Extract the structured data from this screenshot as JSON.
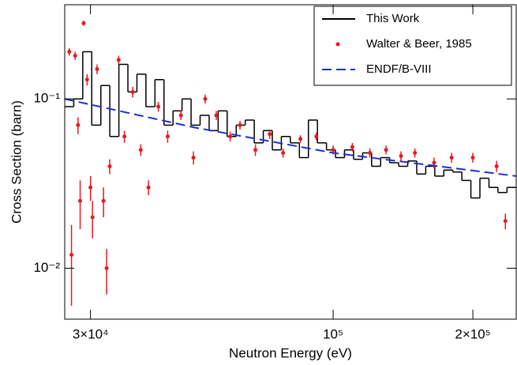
{
  "chart_data": {
    "type": "step",
    "xlabel": "Neutron Energy (eV)",
    "ylabel": "Cross Section (barn)",
    "xscale": "log",
    "yscale": "log",
    "xlim": [
      26400,
      248000
    ],
    "ylim": [
      0.005,
      0.36
    ],
    "xticks": [
      {
        "value": 30000,
        "label": "3×10⁴"
      },
      {
        "value": 100000,
        "label": "10⁵"
      },
      {
        "value": 200000,
        "label": "2×10⁵"
      }
    ],
    "yticks": [
      {
        "value": 0.01,
        "label": "10⁻²"
      },
      {
        "value": 0.1,
        "label": "10⁻¹"
      }
    ],
    "legend": "upper right",
    "series": [
      {
        "name": "This Work",
        "type": "step",
        "color": "#000000",
        "bins": [
          26400,
          27610,
          28870,
          30190,
          31580,
          33020,
          34540,
          36120,
          37770,
          39500,
          41310,
          43200,
          45180,
          47250,
          49420,
          51680,
          54050,
          56520,
          59110,
          61820,
          64650,
          67610,
          70710,
          73950,
          77330,
          80870,
          84580,
          88450,
          92500,
          96740,
          101170,
          105800,
          110650,
          115720,
          121020,
          126560,
          132360,
          138420,
          144760,
          151390,
          158320,
          165570,
          173160,
          181090,
          189380,
          198060,
          207130,
          216620,
          226540,
          236920,
          248000
        ],
        "values": [
          0.09,
          0.1,
          0.19,
          0.07,
          0.12,
          0.06,
          0.16,
          0.11,
          0.14,
          0.09,
          0.13,
          0.07,
          0.085,
          0.1,
          0.07,
          0.08,
          0.065,
          0.085,
          0.06,
          0.07,
          0.075,
          0.055,
          0.065,
          0.05,
          0.06,
          0.055,
          0.045,
          0.075,
          0.055,
          0.05,
          0.045,
          0.05,
          0.044,
          0.048,
          0.04,
          0.045,
          0.042,
          0.04,
          0.043,
          0.036,
          0.04,
          0.035,
          0.038,
          0.037,
          0.033,
          0.026,
          0.034,
          0.03,
          0.028,
          0.03
        ]
      },
      {
        "name": "Walter & Beer, 1985",
        "type": "errorbar",
        "color": "#e8191e",
        "x": [
          27000,
          27300,
          27800,
          28200,
          28500,
          29000,
          29500,
          30000,
          30300,
          31000,
          32000,
          32500,
          33000,
          34500,
          35500,
          37000,
          38500,
          40000,
          42000,
          44000,
          47000,
          50000,
          53000,
          56000,
          60000,
          63000,
          68000,
          73000,
          78000,
          85000,
          92000,
          100000,
          110000,
          120000,
          130000,
          140000,
          150000,
          165000,
          180000,
          200000,
          225000,
          235000
        ],
        "values": [
          0.19,
          0.012,
          0.18,
          0.07,
          0.025,
          0.28,
          0.13,
          0.03,
          0.02,
          0.15,
          0.025,
          0.01,
          0.04,
          0.17,
          0.06,
          0.11,
          0.05,
          0.03,
          0.09,
          0.06,
          0.08,
          0.045,
          0.1,
          0.08,
          0.06,
          0.07,
          0.05,
          0.062,
          0.048,
          0.058,
          0.06,
          0.05,
          0.052,
          0.048,
          0.05,
          0.046,
          0.048,
          0.042,
          0.045,
          0.045,
          0.04,
          0.019
        ],
        "errors": [
          0.01,
          0.006,
          0.01,
          0.008,
          0.008,
          0.01,
          0.01,
          0.005,
          0.005,
          0.01,
          0.005,
          0.003,
          0.004,
          0.01,
          0.005,
          0.008,
          0.004,
          0.003,
          0.006,
          0.005,
          0.005,
          0.004,
          0.006,
          0.005,
          0.004,
          0.004,
          0.004,
          0.004,
          0.003,
          0.003,
          0.003,
          0.003,
          0.003,
          0.003,
          0.003,
          0.003,
          0.003,
          0.003,
          0.003,
          0.003,
          0.003,
          0.002
        ]
      },
      {
        "name": "ENDF/B-VIII",
        "type": "line",
        "linestyle": "dashed",
        "color": "#1f2fd6",
        "x": [
          26400,
          50000,
          100000,
          248000
        ],
        "values": [
          0.1,
          0.068,
          0.048,
          0.035
        ]
      }
    ]
  }
}
